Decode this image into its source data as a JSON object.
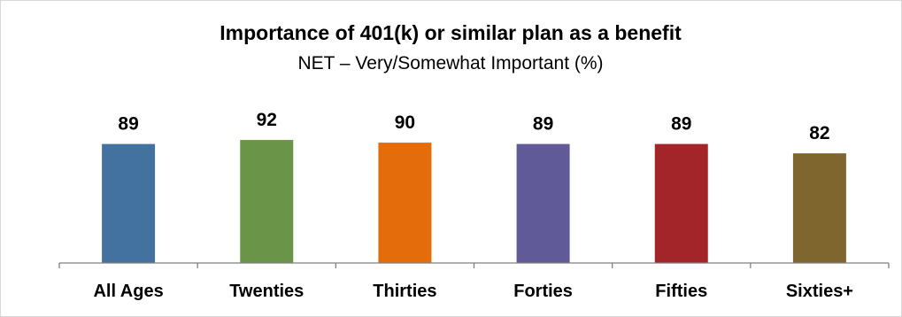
{
  "chart_data": {
    "type": "bar",
    "title": "Importance of 401(k) or similar plan as a benefit",
    "subtitle": "NET – Very/Somewhat Important (%)",
    "categories": [
      "All Ages",
      "Twenties",
      "Thirties",
      "Forties",
      "Fifties",
      "Sixties+"
    ],
    "values": [
      89,
      92,
      90,
      89,
      89,
      82
    ],
    "data_labels": [
      "89",
      "92",
      "90",
      "89",
      "89",
      "82"
    ],
    "colors": [
      "#4472a0",
      "#6a9548",
      "#e46c0a",
      "#605a99",
      "#a3252a",
      "#7f652e"
    ],
    "axis_color": "#808080",
    "ylim": [
      0,
      100
    ],
    "grid": false,
    "legend": "none"
  }
}
